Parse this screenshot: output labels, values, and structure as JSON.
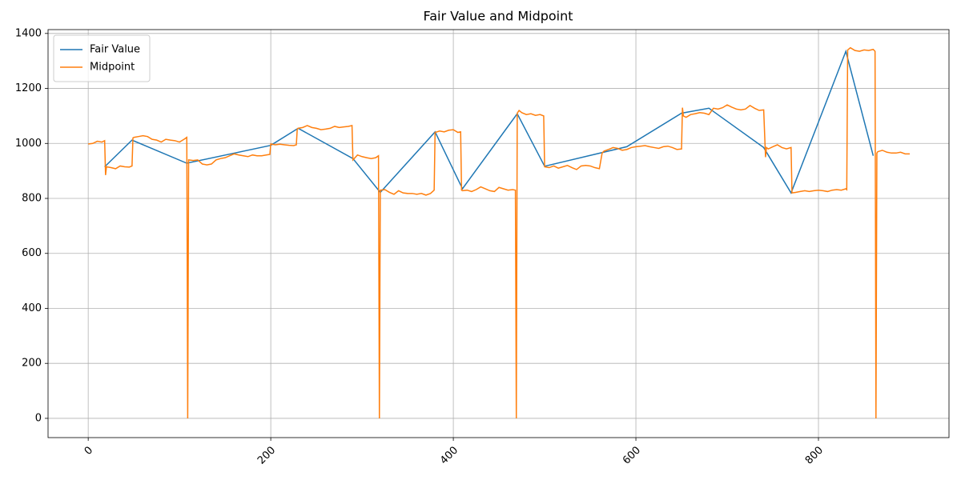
{
  "chart_data": {
    "type": "line",
    "title": "Fair Value and Midpoint",
    "xlim": [
      -44,
      943
    ],
    "ylim": [
      -70,
      1414
    ],
    "xticks": [
      0,
      200,
      400,
      600,
      800
    ],
    "yticks": [
      0,
      200,
      400,
      600,
      800,
      1000,
      1200,
      1400
    ],
    "grid": true,
    "legend": "upper left",
    "series": [
      {
        "name": "Fair Value",
        "color": "#1f77b4",
        "x": [
          18,
          48,
          108,
          200,
          230,
          290,
          320,
          380,
          410,
          470,
          500,
          590,
          650,
          680,
          740,
          770,
          830,
          860
        ],
        "values": [
          915,
          1012,
          928,
          993,
          1055,
          945,
          822,
          1042,
          835,
          1108,
          917,
          988,
          1110,
          1128,
          985,
          820,
          1335,
          955
        ]
      },
      {
        "name": "Midpoint",
        "color": "#ff7f0e",
        "x": [
          0,
          5,
          10,
          15,
          18,
          19,
          20,
          25,
          30,
          35,
          40,
          45,
          48,
          49,
          50,
          55,
          60,
          65,
          70,
          75,
          80,
          85,
          90,
          95,
          100,
          105,
          108,
          109,
          110,
          115,
          120,
          125,
          130,
          135,
          140,
          145,
          150,
          155,
          160,
          165,
          170,
          175,
          180,
          185,
          190,
          195,
          199,
          200,
          205,
          210,
          215,
          220,
          225,
          228,
          229,
          230,
          235,
          240,
          245,
          250,
          255,
          260,
          265,
          270,
          275,
          280,
          285,
          289,
          290,
          295,
          300,
          305,
          310,
          315,
          318,
          319,
          320,
          325,
          330,
          335,
          340,
          345,
          350,
          355,
          360,
          365,
          370,
          375,
          379,
          380,
          385,
          390,
          395,
          400,
          405,
          408,
          409,
          410,
          415,
          420,
          425,
          430,
          435,
          440,
          445,
          450,
          455,
          460,
          465,
          468,
          469,
          470,
          472,
          475,
          480,
          485,
          490,
          495,
          499,
          500,
          505,
          510,
          515,
          520,
          525,
          530,
          535,
          540,
          545,
          550,
          555,
          560,
          563,
          565,
          570,
          575,
          580,
          585,
          590,
          595,
          600,
          605,
          610,
          615,
          620,
          625,
          630,
          635,
          640,
          645,
          650,
          651,
          652,
          655,
          660,
          665,
          670,
          675,
          680,
          685,
          690,
          695,
          700,
          705,
          710,
          715,
          720,
          725,
          730,
          735,
          740,
          742,
          743,
          745,
          750,
          755,
          760,
          765,
          770,
          771,
          775,
          780,
          785,
          790,
          795,
          800,
          805,
          810,
          815,
          820,
          825,
          830,
          831,
          832,
          835,
          840,
          845,
          850,
          855,
          860,
          862,
          863,
          864,
          865,
          870,
          875,
          880,
          885,
          890,
          895,
          900
        ],
        "values": [
          998,
          1000,
          1008,
          1005,
          1010,
          885,
          915,
          912,
          908,
          918,
          915,
          914,
          918,
          1020,
          1022,
          1025,
          1028,
          1025,
          1015,
          1012,
          1005,
          1015,
          1012,
          1010,
          1005,
          1015,
          1022,
          0,
          940,
          938,
          940,
          925,
          922,
          925,
          940,
          945,
          948,
          955,
          962,
          958,
          955,
          952,
          958,
          955,
          955,
          958,
          960,
          998,
          995,
          997,
          995,
          993,
          992,
          995,
          1052,
          1055,
          1058,
          1065,
          1058,
          1055,
          1050,
          1052,
          1055,
          1062,
          1058,
          1060,
          1062,
          1065,
          940,
          958,
          952,
          948,
          945,
          948,
          955,
          0,
          830,
          832,
          822,
          815,
          828,
          820,
          818,
          818,
          815,
          818,
          812,
          818,
          830,
          1040,
          1045,
          1042,
          1048,
          1050,
          1040,
          1042,
          830,
          828,
          830,
          825,
          832,
          842,
          835,
          828,
          825,
          840,
          835,
          830,
          832,
          830,
          0,
          1110,
          1120,
          1112,
          1105,
          1108,
          1102,
          1105,
          1100,
          915,
          912,
          918,
          910,
          915,
          920,
          912,
          905,
          918,
          920,
          918,
          912,
          908,
          965,
          972,
          978,
          985,
          982,
          975,
          978,
          985,
          988,
          990,
          992,
          988,
          985,
          982,
          988,
          990,
          985,
          978,
          980,
          1130,
          1100,
          1095,
          1105,
          1108,
          1112,
          1110,
          1105,
          1128,
          1125,
          1130,
          1140,
          1132,
          1125,
          1122,
          1125,
          1138,
          1128,
          1120,
          1122,
          950,
          985,
          980,
          988,
          995,
          985,
          980,
          985,
          820,
          822,
          825,
          828,
          825,
          828,
          830,
          828,
          825,
          830,
          832,
          830,
          835,
          832,
          1340,
          1348,
          1338,
          1335,
          1340,
          1338,
          1342,
          1335,
          0,
          965,
          970,
          975,
          968,
          965,
          965,
          968,
          962,
          962
        ]
      }
    ]
  }
}
